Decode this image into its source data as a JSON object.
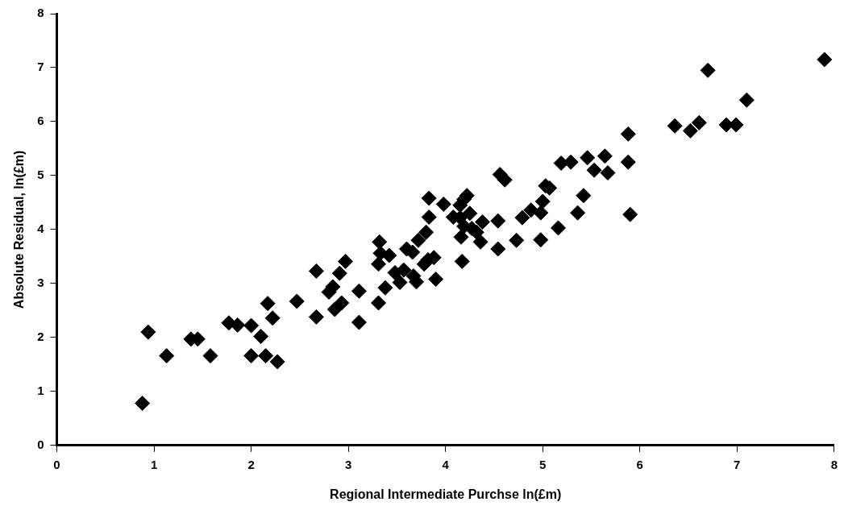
{
  "chart_data": {
    "type": "scatter",
    "xlabel": "Regional Intermediate Purchse ln(£m)",
    "ylabel": "Absolute Residual, ln(£m)",
    "xlim": [
      0,
      8
    ],
    "xticks": [
      0,
      1,
      2,
      3,
      4,
      5,
      6,
      7,
      8
    ],
    "ylim": [
      0,
      8
    ],
    "yticks": [
      0,
      1,
      2,
      3,
      4,
      5,
      6,
      7,
      8
    ],
    "grid": false,
    "legend": false,
    "marker": "diamond",
    "series": [
      {
        "color": "#000000",
        "x": [
          0.88,
          0.94,
          1.13,
          1.38,
          1.45,
          1.58,
          1.77,
          1.86,
          2.0,
          2.0,
          2.1,
          2.15,
          2.17,
          2.22,
          2.27,
          2.47,
          2.67,
          2.67,
          2.8,
          2.84,
          2.86,
          2.91,
          2.93,
          2.97,
          3.11,
          3.11,
          3.31,
          3.31,
          3.32,
          3.33,
          3.38,
          3.42,
          3.48,
          3.53,
          3.57,
          3.6,
          3.66,
          3.67,
          3.7,
          3.72,
          3.78,
          3.8,
          3.82,
          3.83,
          3.83,
          3.88,
          3.9,
          3.98,
          4.08,
          4.15,
          4.15,
          4.16,
          4.17,
          4.19,
          4.22,
          4.19,
          4.25,
          4.27,
          4.32,
          4.36,
          4.38,
          4.54,
          4.54,
          4.56,
          4.61,
          4.73,
          4.79,
          4.88,
          4.98,
          4.98,
          5.0,
          5.03,
          5.07,
          5.16,
          5.19,
          5.29,
          5.36,
          5.42,
          5.46,
          5.53,
          5.64,
          5.67,
          5.88,
          5.88,
          5.9,
          6.36,
          6.52,
          6.61,
          6.7,
          6.89,
          6.99,
          7.1,
          7.9
        ],
        "values": [
          0.78,
          2.1,
          1.66,
          1.97,
          1.97,
          1.66,
          2.27,
          2.23,
          2.22,
          1.66,
          2.02,
          1.66,
          2.63,
          2.36,
          1.55,
          2.67,
          2.38,
          3.23,
          2.84,
          2.94,
          2.52,
          3.19,
          2.64,
          3.41,
          2.86,
          2.28,
          2.64,
          3.36,
          3.77,
          3.56,
          2.92,
          3.52,
          3.2,
          3.02,
          3.25,
          3.64,
          3.58,
          3.14,
          3.03,
          3.8,
          3.36,
          3.95,
          3.44,
          4.23,
          4.58,
          3.48,
          3.08,
          4.47,
          4.23,
          4.45,
          4.22,
          3.86,
          3.41,
          4.56,
          4.63,
          4.06,
          4.3,
          4.02,
          3.95,
          3.77,
          4.14,
          4.16,
          3.64,
          5.02,
          4.92,
          3.8,
          4.22,
          4.36,
          4.31,
          3.81,
          4.52,
          4.81,
          4.77,
          4.03,
          5.23,
          5.25,
          4.31,
          4.63,
          5.33,
          5.1,
          5.36,
          5.05,
          5.77,
          5.25,
          4.28,
          5.92,
          5.83,
          5.98,
          6.95,
          5.94,
          5.94,
          6.4,
          7.15
        ]
      }
    ]
  }
}
